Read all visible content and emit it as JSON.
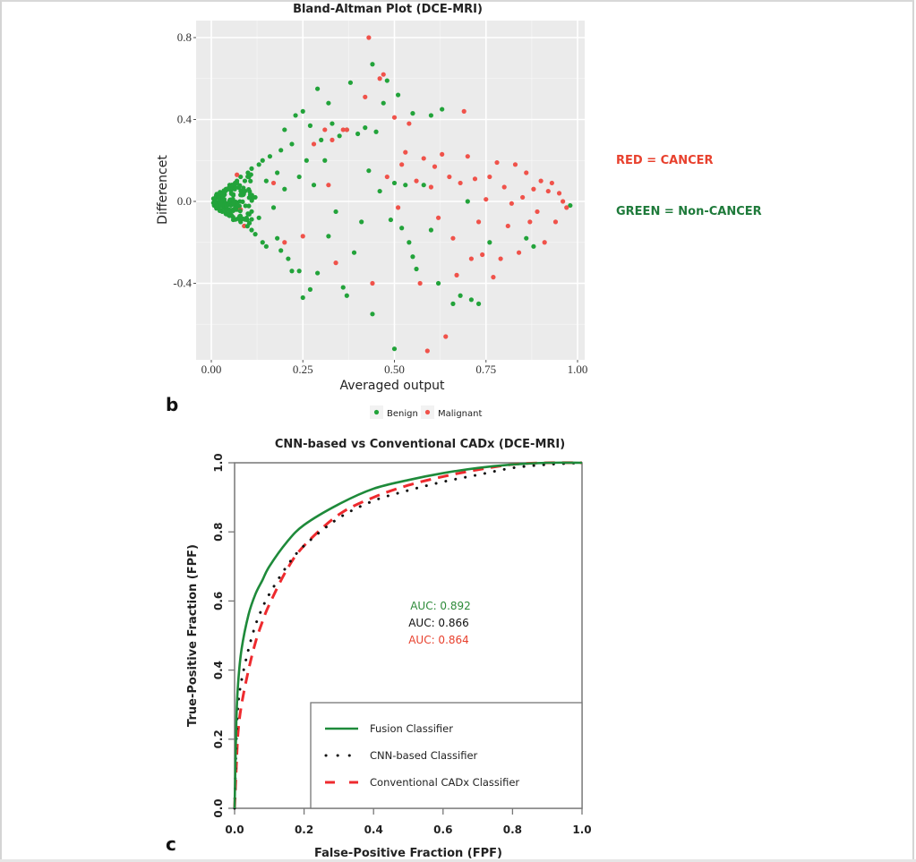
{
  "panel_letters": {
    "b": "b",
    "c": "c"
  },
  "annotations": {
    "red_note": "RED = CANCER",
    "green_note": "GREEN = Non-CANCER",
    "red_color": "#e8412e",
    "green_color": "#1e7a3a"
  },
  "chart_data": [
    {
      "type": "scatter",
      "title": "Bland-Altman Plot (DCE-MRI)",
      "xlabel": "Averaged output",
      "ylabel": "Differencet",
      "xlim": [
        -0.04,
        1.02
      ],
      "ylim": [
        -0.85,
        0.88
      ],
      "x_ticks": [
        0.0,
        0.25,
        0.5,
        0.75,
        1.0
      ],
      "x_tick_labels": [
        "0.00",
        "0.25",
        "0.50",
        "0.75",
        "1.00"
      ],
      "y_ticks": [
        -0.4,
        0.0,
        0.4,
        0.8
      ],
      "y_tick_labels": [
        "-0.4",
        "0.0",
        "0.4",
        "0.8"
      ],
      "grid": true,
      "legend_position": "bottom",
      "series": [
        {
          "name": "Benign",
          "color": "#22a33a",
          "points": [
            [
              0.01,
              0.0
            ],
            [
              0.02,
              0.02
            ],
            [
              0.02,
              -0.03
            ],
            [
              0.03,
              0.04
            ],
            [
              0.03,
              -0.05
            ],
            [
              0.04,
              0.06
            ],
            [
              0.04,
              -0.02
            ],
            [
              0.05,
              0.08
            ],
            [
              0.05,
              -0.07
            ],
            [
              0.06,
              0.03
            ],
            [
              0.06,
              -0.09
            ],
            [
              0.07,
              0.1
            ],
            [
              0.07,
              -0.04
            ],
            [
              0.08,
              0.12
            ],
            [
              0.08,
              -0.1
            ],
            [
              0.09,
              0.05
            ],
            [
              0.09,
              -0.12
            ],
            [
              0.1,
              0.14
            ],
            [
              0.1,
              -0.06
            ],
            [
              0.11,
              0.16
            ],
            [
              0.11,
              -0.14
            ],
            [
              0.12,
              0.02
            ],
            [
              0.12,
              -0.16
            ],
            [
              0.13,
              0.18
            ],
            [
              0.13,
              -0.08
            ],
            [
              0.14,
              0.2
            ],
            [
              0.14,
              -0.2
            ],
            [
              0.15,
              0.1
            ],
            [
              0.15,
              -0.22
            ],
            [
              0.16,
              0.22
            ],
            [
              0.17,
              -0.03
            ],
            [
              0.18,
              0.14
            ],
            [
              0.18,
              -0.18
            ],
            [
              0.19,
              0.25
            ],
            [
              0.19,
              -0.24
            ],
            [
              0.2,
              0.06
            ],
            [
              0.2,
              0.35
            ],
            [
              0.21,
              -0.28
            ],
            [
              0.22,
              0.28
            ],
            [
              0.22,
              -0.34
            ],
            [
              0.23,
              0.42
            ],
            [
              0.24,
              -0.34
            ],
            [
              0.24,
              0.12
            ],
            [
              0.25,
              0.44
            ],
            [
              0.25,
              -0.47
            ],
            [
              0.26,
              0.2
            ],
            [
              0.27,
              0.37
            ],
            [
              0.27,
              -0.43
            ],
            [
              0.28,
              0.08
            ],
            [
              0.29,
              0.55
            ],
            [
              0.29,
              -0.35
            ],
            [
              0.3,
              0.3
            ],
            [
              0.31,
              0.2
            ],
            [
              0.32,
              0.48
            ],
            [
              0.32,
              -0.17
            ],
            [
              0.33,
              0.38
            ],
            [
              0.34,
              -0.05
            ],
            [
              0.35,
              0.32
            ],
            [
              0.36,
              -0.42
            ],
            [
              0.37,
              0.35
            ],
            [
              0.37,
              -0.46
            ],
            [
              0.38,
              0.58
            ],
            [
              0.39,
              -0.25
            ],
            [
              0.4,
              0.33
            ],
            [
              0.41,
              -0.1
            ],
            [
              0.42,
              0.36
            ],
            [
              0.43,
              0.15
            ],
            [
              0.44,
              0.67
            ],
            [
              0.44,
              -0.55
            ],
            [
              0.45,
              0.34
            ],
            [
              0.46,
              0.05
            ],
            [
              0.47,
              0.48
            ],
            [
              0.48,
              0.59
            ],
            [
              0.49,
              -0.09
            ],
            [
              0.5,
              0.09
            ],
            [
              0.5,
              -0.72
            ],
            [
              0.51,
              0.52
            ],
            [
              0.52,
              -0.13
            ],
            [
              0.53,
              0.08
            ],
            [
              0.54,
              -0.2
            ],
            [
              0.55,
              0.43
            ],
            [
              0.55,
              -0.27
            ],
            [
              0.56,
              -0.33
            ],
            [
              0.58,
              0.08
            ],
            [
              0.6,
              0.42
            ],
            [
              0.6,
              -0.14
            ],
            [
              0.62,
              -0.4
            ],
            [
              0.63,
              0.45
            ],
            [
              0.66,
              -0.5
            ],
            [
              0.68,
              -0.46
            ],
            [
              0.7,
              0.0
            ],
            [
              0.71,
              -0.48
            ],
            [
              0.73,
              -0.5
            ],
            [
              0.76,
              -0.2
            ],
            [
              0.86,
              -0.18
            ],
            [
              0.88,
              -0.22
            ],
            [
              0.98,
              -0.02
            ]
          ]
        },
        {
          "name": "Malignant",
          "color": "#f0524a",
          "points": [
            [
              0.07,
              0.13
            ],
            [
              0.08,
              -0.04
            ],
            [
              0.09,
              -0.12
            ],
            [
              0.17,
              0.09
            ],
            [
              0.2,
              -0.2
            ],
            [
              0.25,
              -0.17
            ],
            [
              0.28,
              0.28
            ],
            [
              0.31,
              0.35
            ],
            [
              0.32,
              0.08
            ],
            [
              0.33,
              0.3
            ],
            [
              0.34,
              -0.3
            ],
            [
              0.36,
              0.35
            ],
            [
              0.37,
              0.35
            ],
            [
              0.42,
              0.51
            ],
            [
              0.43,
              0.8
            ],
            [
              0.44,
              -0.4
            ],
            [
              0.46,
              0.6
            ],
            [
              0.47,
              0.62
            ],
            [
              0.48,
              0.12
            ],
            [
              0.5,
              0.41
            ],
            [
              0.51,
              -0.03
            ],
            [
              0.52,
              0.18
            ],
            [
              0.53,
              0.24
            ],
            [
              0.54,
              0.38
            ],
            [
              0.56,
              0.1
            ],
            [
              0.57,
              -0.4
            ],
            [
              0.58,
              0.21
            ],
            [
              0.59,
              -0.73
            ],
            [
              0.6,
              0.07
            ],
            [
              0.61,
              0.17
            ],
            [
              0.62,
              -0.08
            ],
            [
              0.63,
              0.23
            ],
            [
              0.64,
              -0.66
            ],
            [
              0.65,
              0.12
            ],
            [
              0.66,
              -0.18
            ],
            [
              0.67,
              -0.36
            ],
            [
              0.68,
              0.09
            ],
            [
              0.69,
              0.44
            ],
            [
              0.7,
              0.22
            ],
            [
              0.71,
              -0.28
            ],
            [
              0.72,
              0.11
            ],
            [
              0.73,
              -0.1
            ],
            [
              0.74,
              -0.26
            ],
            [
              0.75,
              0.01
            ],
            [
              0.76,
              0.12
            ],
            [
              0.77,
              -0.37
            ],
            [
              0.78,
              0.19
            ],
            [
              0.79,
              -0.28
            ],
            [
              0.8,
              0.07
            ],
            [
              0.81,
              -0.12
            ],
            [
              0.82,
              -0.01
            ],
            [
              0.83,
              0.18
            ],
            [
              0.84,
              -0.25
            ],
            [
              0.85,
              0.02
            ],
            [
              0.86,
              0.14
            ],
            [
              0.87,
              -0.1
            ],
            [
              0.88,
              0.06
            ],
            [
              0.89,
              -0.05
            ],
            [
              0.9,
              0.1
            ],
            [
              0.91,
              -0.2
            ],
            [
              0.92,
              0.05
            ],
            [
              0.93,
              0.09
            ],
            [
              0.94,
              -0.1
            ],
            [
              0.95,
              0.04
            ],
            [
              0.96,
              0.0
            ],
            [
              0.97,
              -0.03
            ]
          ]
        }
      ]
    },
    {
      "type": "line",
      "title": "CNN-based vs Conventional CADx (DCE-MRI)",
      "xlabel": "False-Positive Fraction (FPF)",
      "ylabel": "True-Positive Fraction (FPF)",
      "xlim": [
        0,
        1
      ],
      "ylim": [
        0,
        1
      ],
      "x_ticks": [
        "0.0",
        "0.2",
        "0.4",
        "0.6",
        "0.8",
        "1.0"
      ],
      "y_ticks": [
        "0.0",
        "0.2",
        "0.4",
        "0.6",
        "0.8",
        "1.0"
      ],
      "grid": false,
      "legend_position": "bottom-right",
      "auc_labels": [
        {
          "text": "AUC: 0.892",
          "color": "#2e8b3a"
        },
        {
          "text": "AUC: 0.866",
          "color": "#111111"
        },
        {
          "text": "AUC: 0.864",
          "color": "#e8412e"
        }
      ],
      "series": [
        {
          "name": "Fusion Classifier",
          "color": "#1e8a3a",
          "style": "solid",
          "auc": 0.892,
          "x": [
            0,
            0.005,
            0.01,
            0.02,
            0.04,
            0.06,
            0.08,
            0.1,
            0.15,
            0.2,
            0.3,
            0.4,
            0.5,
            0.6,
            0.7,
            0.8,
            0.9,
            1.0
          ],
          "y": [
            0,
            0.25,
            0.36,
            0.46,
            0.56,
            0.62,
            0.66,
            0.7,
            0.77,
            0.82,
            0.88,
            0.925,
            0.95,
            0.97,
            0.985,
            0.995,
            1.0,
            1.0
          ]
        },
        {
          "name": "CNN-based Classifier",
          "color": "#111111",
          "style": "dotted",
          "auc": 0.866,
          "x": [
            0,
            0.005,
            0.01,
            0.02,
            0.04,
            0.06,
            0.08,
            0.1,
            0.15,
            0.2,
            0.3,
            0.4,
            0.5,
            0.6,
            0.7,
            0.8,
            0.9,
            1.0
          ],
          "y": [
            0,
            0.2,
            0.3,
            0.37,
            0.46,
            0.53,
            0.58,
            0.62,
            0.7,
            0.76,
            0.84,
            0.89,
            0.92,
            0.945,
            0.965,
            0.985,
            0.995,
            1.0
          ]
        },
        {
          "name": "Conventional CADx Classifier",
          "color": "#ee2a2e",
          "style": "dashed",
          "auc": 0.864,
          "x": [
            0,
            0.005,
            0.01,
            0.02,
            0.04,
            0.06,
            0.08,
            0.1,
            0.15,
            0.2,
            0.3,
            0.4,
            0.5,
            0.6,
            0.7,
            0.8,
            0.9,
            1.0
          ],
          "y": [
            0,
            0.12,
            0.22,
            0.3,
            0.4,
            0.48,
            0.54,
            0.59,
            0.69,
            0.76,
            0.85,
            0.9,
            0.935,
            0.96,
            0.98,
            0.995,
            1.0,
            1.0
          ]
        }
      ]
    }
  ]
}
